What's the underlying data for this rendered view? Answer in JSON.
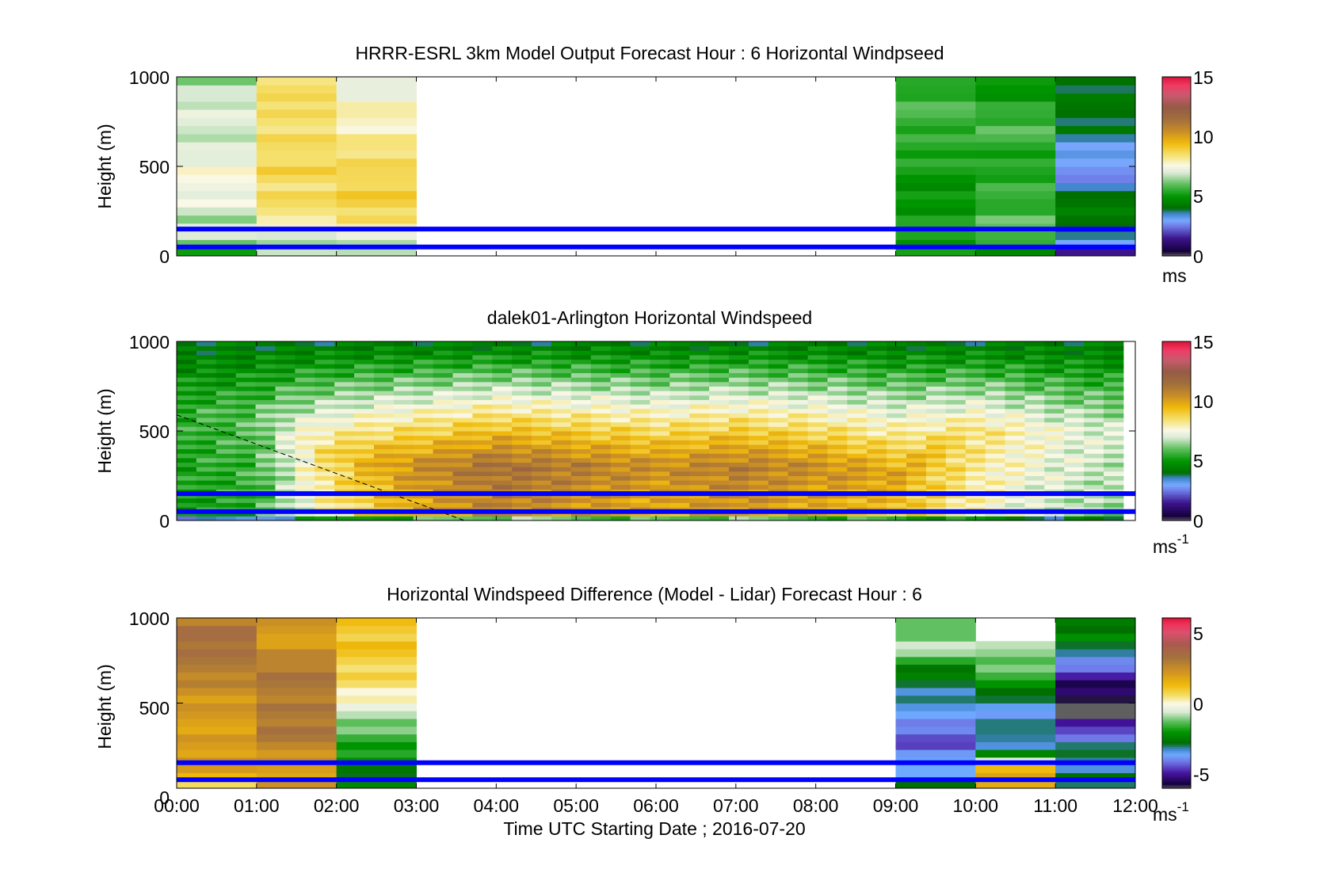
{
  "figure": {
    "xlabel": "Time UTC  Starting Date ; 2016-07-20",
    "xticks": [
      "00:00",
      "01:00",
      "02:00",
      "03:00",
      "04:00",
      "05:00",
      "06:00",
      "07:00",
      "08:00",
      "09:00",
      "10:00",
      "11:00",
      "12:00"
    ]
  },
  "chart_data": [
    {
      "type": "heatmap",
      "title": "HRRR-ESRL 3km Model Output   Forecast Hour : 6 Horizontal Windpseed",
      "ylabel": "Height (m)",
      "xlim": [
        0,
        12
      ],
      "ylim": [
        0,
        1000
      ],
      "yticks": [
        "0",
        "500",
        "1000"
      ],
      "x_units": "hours UTC",
      "colorbar": {
        "ticks": [
          "0",
          "5",
          "10",
          "15"
        ],
        "range": [
          0,
          15
        ],
        "unit": "ms"
      },
      "data_columns_hours": [
        0,
        1,
        2,
        9,
        10,
        11
      ],
      "description_of_values": "approx wind speed (m/s) per hourly column, bottom to top",
      "columns": [
        {
          "x": 0,
          "values": [
            5.5,
            7.0,
            6.5,
            7.5,
            7.5,
            7.5,
            7.0,
            7.0,
            7.0,
            7.0,
            6.5
          ]
        },
        {
          "x": 1,
          "values": [
            6.5,
            7.0,
            8.5,
            8.5,
            8.5,
            9.0,
            8.5,
            8.5,
            8.5,
            9.0,
            8.0
          ]
        },
        {
          "x": 2,
          "values": [
            6.5,
            7.5,
            8.5,
            9.0,
            9.0,
            8.5,
            8.5,
            8.0,
            8.0,
            7.5,
            7.0
          ]
        },
        {
          "x": 9,
          "values": [
            5.0,
            5.5,
            5.0,
            5.0,
            5.0,
            5.2,
            5.4,
            5.6,
            5.8,
            5.6,
            5.2
          ]
        },
        {
          "x": 10,
          "values": [
            4.5,
            6.0,
            6.0,
            5.5,
            5.5,
            5.3,
            5.5,
            5.8,
            5.6,
            5.2,
            5.0
          ]
        },
        {
          "x": 11,
          "values": [
            1.5,
            4.2,
            4.0,
            4.5,
            3.0,
            2.8,
            3.0,
            4.0,
            4.2,
            4.0,
            4.1
          ]
        }
      ],
      "lines_m": [
        150,
        50
      ]
    },
    {
      "type": "heatmap",
      "title": "dalek01-Arlington  Horizontal Windspeed",
      "ylabel": "Height (m)",
      "xlim": [
        0,
        12
      ],
      "ylim": [
        0,
        1000
      ],
      "yticks": [
        "0",
        "500",
        "1000"
      ],
      "colorbar": {
        "ticks": [
          "0",
          "5",
          "10",
          "15"
        ],
        "range": [
          0,
          15
        ],
        "unit": "ms",
        "unit_sup": "-1"
      },
      "time_span_hours": [
        0,
        11.85
      ],
      "description_of_values": "approx profile: wind speed rises from ~5 m/s to a jet of ~10-12 m/s near 200-400 m between 02:00 and 09:00",
      "profile": [
        {
          "x": 0.0,
          "peak": 5.5,
          "peak_h": 600
        },
        {
          "x": 1.0,
          "peak": 6.0,
          "peak_h": 600
        },
        {
          "x": 1.8,
          "peak": 8.5,
          "peak_h": 400
        },
        {
          "x": 2.3,
          "peak": 9.5,
          "peak_h": 350
        },
        {
          "x": 3.0,
          "peak": 10.5,
          "peak_h": 300
        },
        {
          "x": 4.0,
          "peak": 11.5,
          "peak_h": 300
        },
        {
          "x": 5.0,
          "peak": 11.0,
          "peak_h": 300
        },
        {
          "x": 6.0,
          "peak": 10.5,
          "peak_h": 300
        },
        {
          "x": 7.0,
          "peak": 11.0,
          "peak_h": 300
        },
        {
          "x": 8.0,
          "peak": 10.5,
          "peak_h": 300
        },
        {
          "x": 9.0,
          "peak": 10.0,
          "peak_h": 250
        },
        {
          "x": 10.0,
          "peak": 8.5,
          "peak_h": 500
        },
        {
          "x": 11.0,
          "peak": 7.5,
          "peak_h": 500
        },
        {
          "x": 11.85,
          "peak": 7.0,
          "peak_h": 500
        }
      ],
      "dashed_line": {
        "x": [
          0,
          3.6
        ],
        "y": [
          590,
          0
        ]
      },
      "lines_m": [
        150,
        50
      ]
    },
    {
      "type": "heatmap",
      "title": "Horizontal Windspeed Difference (Model - Lidar) Forecast Hour : 6",
      "ylabel": "Height (m)",
      "xlim": [
        0,
        12
      ],
      "ylim": [
        0,
        1000
      ],
      "yticks": [
        "0",
        "500",
        "1000"
      ],
      "colorbar": {
        "ticks": [
          "-5",
          "0",
          "5"
        ],
        "range": [
          -6,
          6
        ],
        "unit": "ms",
        "unit_sup": "-1"
      },
      "description_of_values": "approx difference (m/s) per hourly column, bottom to top",
      "columns": [
        {
          "x": 0,
          "values": [
            1.0,
            2.0,
            2.0,
            2.0,
            2.0,
            2.0,
            2.5,
            3.0,
            3.0,
            3.5,
            3.0
          ]
        },
        {
          "x": 1,
          "values": [
            2.0,
            2.0,
            2.5,
            3.0,
            3.0,
            3.0,
            3.0,
            3.0,
            2.5,
            2.0,
            2.0
          ]
        },
        {
          "x": 2,
          "values": [
            -2.5,
            -2.5,
            -2.0,
            -1.5,
            -0.8,
            -0.3,
            0.5,
            0.8,
            1.0,
            1.0,
            1.0
          ]
        },
        {
          "x": 9,
          "values": [
            -3.0,
            -3.5,
            -4.2,
            -4.5,
            -3.5,
            -3.5,
            -3.0,
            -2.5,
            -1.0,
            -1.0,
            -1.5
          ]
        },
        {
          "x": 10,
          "values": [
            1.5,
            1.5,
            -3.0,
            -3.0,
            -3.5,
            -3.5,
            -2.0,
            -1.5,
            -1.0,
            null,
            null
          ]
        },
        {
          "x": 11,
          "values": [
            -3.0,
            -3.0,
            -3.0,
            -4.0,
            -5.5,
            -6.0,
            -5.5,
            -4.5,
            -3.0,
            null,
            -2.5
          ]
        }
      ],
      "lines_m": [
        150,
        50
      ]
    }
  ]
}
